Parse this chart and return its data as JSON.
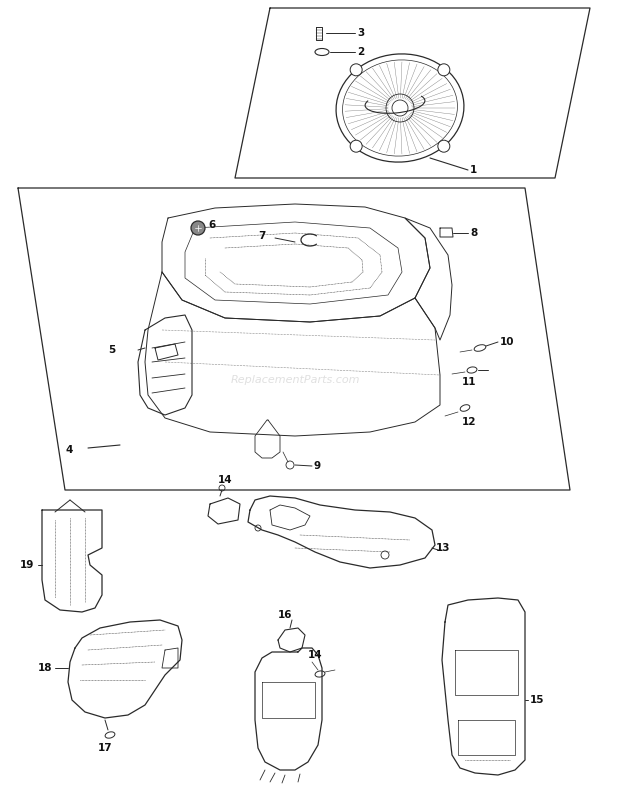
{
  "bg_color": "#ffffff",
  "lc": "#2a2a2a",
  "lc_light": "#555555",
  "fig_width": 6.2,
  "fig_height": 8.02,
  "dpi": 100,
  "watermark": "ReplacementParts.com",
  "watermark_color": "#bbbbbb"
}
